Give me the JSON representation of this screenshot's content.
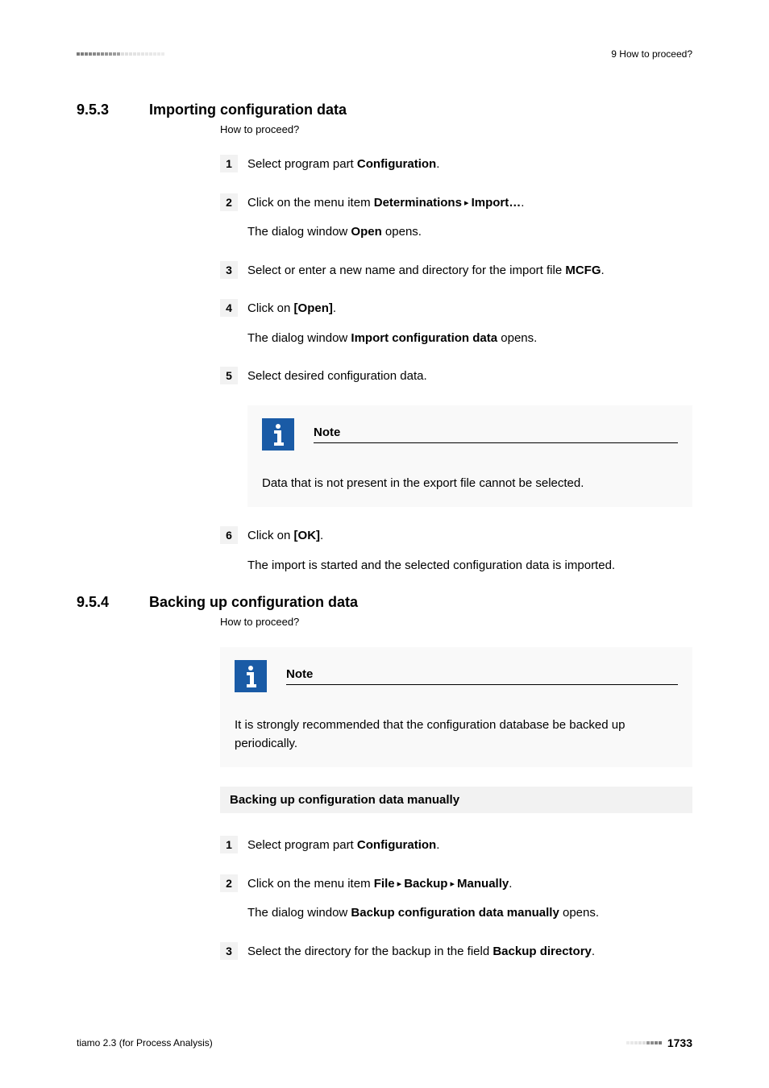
{
  "header": {
    "right": "9 How to proceed?",
    "square_color_dark": "#7a7a7a",
    "square_color_light": "#cfcfcf",
    "square_count": 22
  },
  "section1": {
    "number": "9.5.3",
    "title": "Importing configuration data",
    "subtitle": "How to proceed?",
    "steps": {
      "s1": {
        "num": "1",
        "pre": "Select program part ",
        "b1": "Configuration",
        "post": "."
      },
      "s2": {
        "num": "2",
        "pre": "Click on the menu item ",
        "b1": "Determinations",
        "mid": " ▸ ",
        "b2": "Import…",
        "post": ".",
        "sub_pre": "The dialog window ",
        "sub_b": "Open",
        "sub_post": " opens."
      },
      "s3": {
        "num": "3",
        "pre": "Select or enter a new name and directory for the import file ",
        "b1": "MCFG",
        "post": "."
      },
      "s4": {
        "num": "4",
        "pre": "Click on ",
        "b1": "[Open]",
        "post": ".",
        "sub_pre": "The dialog window ",
        "sub_b": "Import configuration data",
        "sub_post": " opens."
      },
      "s5": {
        "num": "5",
        "text": "Select desired configuration data."
      },
      "note": {
        "title": "Note",
        "body": "Data that is not present in the export file cannot be selected."
      },
      "s6": {
        "num": "6",
        "pre": "Click on ",
        "b1": "[OK]",
        "post": ".",
        "sub": "The import is started and the selected configuration data is imported."
      }
    }
  },
  "section2": {
    "number": "9.5.4",
    "title": "Backing up configuration data",
    "subtitle": "How to proceed?",
    "note": {
      "title": "Note",
      "body": "It is strongly recommended that the configuration database be backed up periodically."
    },
    "heading": "Backing up configuration data manually",
    "steps": {
      "s1": {
        "num": "1",
        "pre": "Select program part ",
        "b1": "Configuration",
        "post": "."
      },
      "s2": {
        "num": "2",
        "pre": "Click on the menu item ",
        "b1": "File",
        "m1": " ▸ ",
        "b2": "Backup",
        "m2": " ▸ ",
        "b3": "Manually",
        "post": ".",
        "sub_pre": "The dialog window ",
        "sub_b": "Backup configuration data manually",
        "sub_post": " opens."
      },
      "s3": {
        "num": "3",
        "pre": "Select the directory for the backup in the field ",
        "b1": "Backup directory",
        "post": "."
      }
    }
  },
  "footer": {
    "left": "tiamo 2.3 (for Process Analysis)",
    "page": "1733",
    "square_color_dark": "#7a7a7a",
    "square_color_light": "#cfcfcf",
    "square_count": 9
  },
  "colors": {
    "note_icon_bg": "#1a5ba6",
    "step_bg": "#f2f2f2",
    "note_bg": "#f9f9f9"
  }
}
